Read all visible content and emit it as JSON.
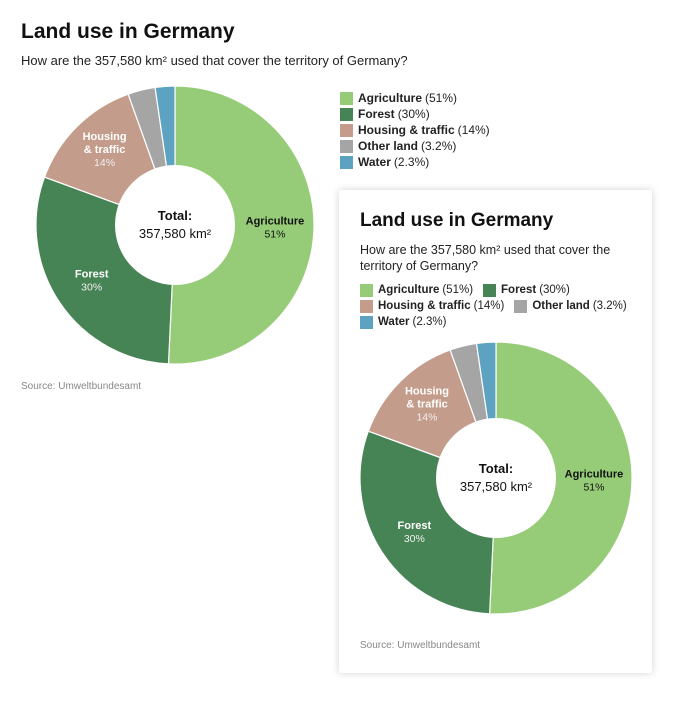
{
  "chart_data": [
    {
      "type": "pie",
      "style": "donut",
      "title": "Land use in Germany",
      "subtitle": "How are the 357,580 km² used that cover the territory of Germany?",
      "center_title": "Total:",
      "center_value": "357,580 km²",
      "categories": [
        "Agriculture",
        "Forest",
        "Housing & traffic",
        "Other land",
        "Water"
      ],
      "values": [
        51,
        30,
        14,
        3.2,
        2.3
      ],
      "labels": [
        "51%",
        "30%",
        "14%",
        "3.2%",
        "2.3%"
      ],
      "legend_labels": [
        "(51%)",
        "(30%)",
        "(14%)",
        "(3.2%)",
        "(2.3%)"
      ],
      "colors": [
        "#96cc78",
        "#478455",
        "#c49c8b",
        "#a5a5a5",
        "#5da2c0"
      ],
      "legend_position": "right",
      "source": "Source: Umweltbundesamt"
    },
    {
      "type": "pie",
      "style": "donut",
      "title": "Land use in Germany",
      "subtitle": "How are the 357,580 km² used that cover the territory of Germany?",
      "center_title": "Total:",
      "center_value": "357,580 km²",
      "categories": [
        "Agriculture",
        "Forest",
        "Housing & traffic",
        "Other land",
        "Water"
      ],
      "values": [
        51,
        30,
        14,
        3.2,
        2.3
      ],
      "labels": [
        "51%",
        "30%",
        "14%",
        "3.2%",
        "2.3%"
      ],
      "legend_labels": [
        "(51%)",
        "(30%)",
        "(14%)",
        "(3.2%)",
        "(2.3%)"
      ],
      "colors": [
        "#96cc78",
        "#478455",
        "#c49c8b",
        "#a5a5a5",
        "#5da2c0"
      ],
      "legend_position": "top",
      "source": "Source: Umweltbundesamt"
    }
  ]
}
